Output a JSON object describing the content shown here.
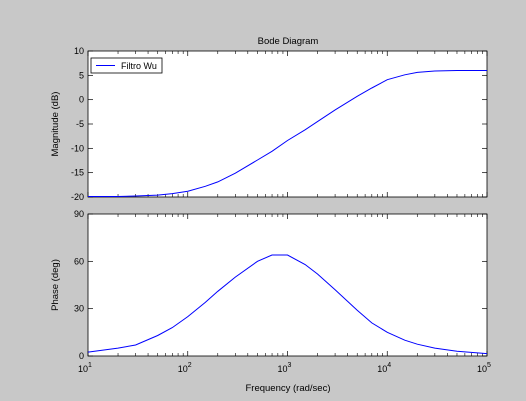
{
  "chart_data": {
    "type": "line",
    "title": "Bode Diagram",
    "xlabel": "Frequency (rad/sec)",
    "xscale": "log",
    "xlim": [
      10,
      100000
    ],
    "x_tick_labels": [
      {
        "base": "10",
        "exp": "1",
        "value": 10
      },
      {
        "base": "10",
        "exp": "2",
        "value": 100
      },
      {
        "base": "10",
        "exp": "3",
        "value": 1000
      },
      {
        "base": "10",
        "exp": "4",
        "value": 10000
      },
      {
        "base": "10",
        "exp": "5",
        "value": 100000
      }
    ],
    "line_color": "#0000ff",
    "panels": [
      {
        "ylabel": "Magnitude (dB)",
        "ylim": [
          -20,
          10
        ],
        "yticks": [
          -20,
          -15,
          -10,
          -5,
          0,
          5,
          10
        ],
        "legend": {
          "location": "top-left",
          "entries": [
            "Filtro Wu"
          ]
        },
        "series": [
          {
            "name": "Filtro Wu",
            "x": [
              10,
              20,
              30,
              50,
              70,
              100,
              150,
              200,
              300,
              500,
              700,
              1000,
              1500,
              2000,
              3000,
              5000,
              7000,
              10000,
              15000,
              20000,
              30000,
              50000,
              100000
            ],
            "y": [
              -19.9,
              -19.9,
              -19.8,
              -19.6,
              -19.3,
              -18.8,
              -17.8,
              -16.9,
              -15.1,
              -12.4,
              -10.6,
              -8.4,
              -6.2,
              -4.5,
              -2.1,
              0.7,
              2.4,
              4.1,
              5.1,
              5.6,
              5.9,
              6.0,
              6.0
            ]
          }
        ]
      },
      {
        "ylabel": "Phase (deg)",
        "ylim": [
          0,
          90
        ],
        "yticks": [
          0,
          30,
          60,
          90
        ],
        "series": [
          {
            "name": "Filtro Wu",
            "x": [
              10,
              20,
              30,
              50,
              70,
              100,
              150,
              200,
              300,
              500,
              700,
              1000,
              1500,
              2000,
              3000,
              5000,
              7000,
              10000,
              15000,
              20000,
              30000,
              50000,
              100000
            ],
            "y": [
              2.5,
              5,
              7,
              13,
              18,
              25,
              34,
              41,
              50,
              60,
              64,
              64,
              58,
              52,
              42,
              29,
              21,
              15,
              10,
              7.5,
              5,
              3,
              1.5
            ]
          }
        ]
      }
    ]
  }
}
